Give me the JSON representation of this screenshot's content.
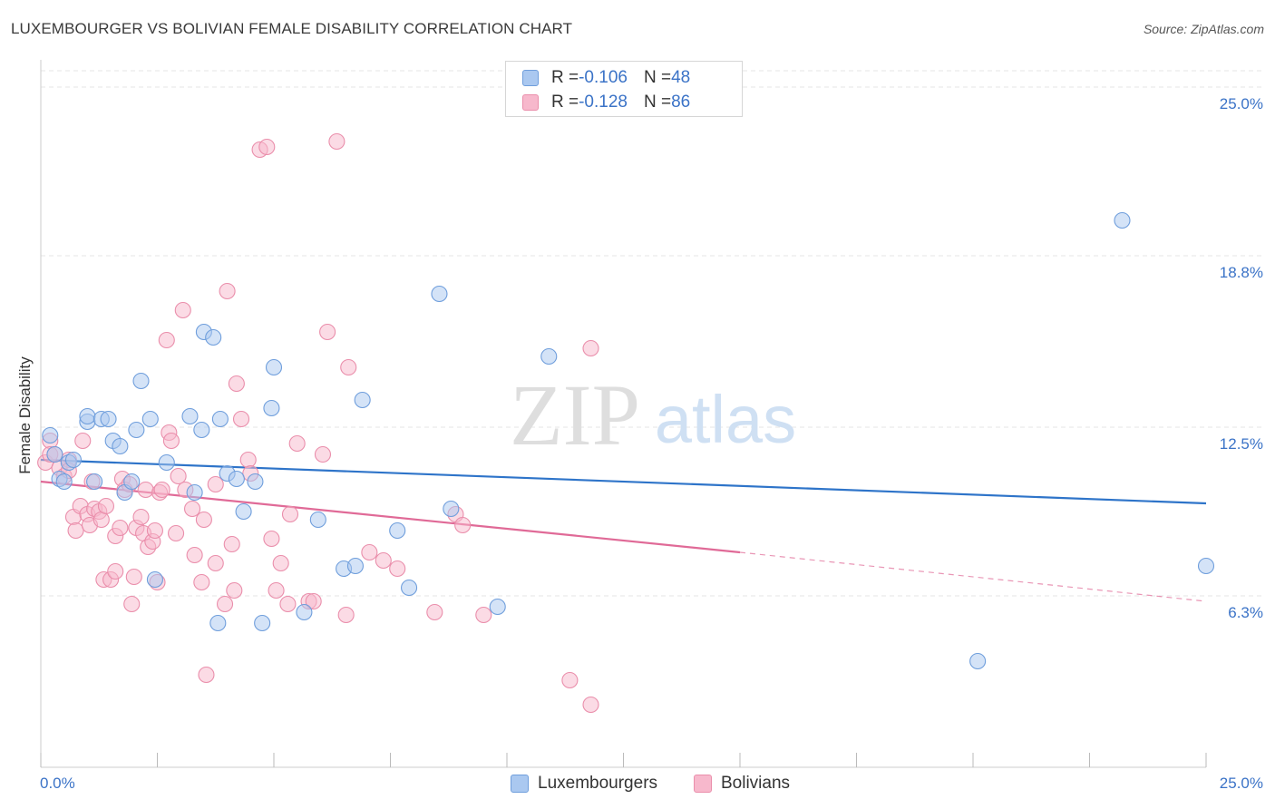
{
  "header": {
    "title": "LUXEMBOURGER VS BOLIVIAN FEMALE DISABILITY CORRELATION CHART",
    "source": "Source: ZipAtlas.com"
  },
  "watermark": {
    "zip": "ZIP",
    "atlas": "atlas"
  },
  "legend": {
    "rows": [
      {
        "r_label": "R = ",
        "r_value": "-0.106",
        "n_label": "N = ",
        "n_value": "48"
      },
      {
        "r_label": "R = ",
        "r_value": "-0.128",
        "n_label": "N = ",
        "n_value": "86"
      }
    ]
  },
  "colors": {
    "lux_fill": "#aac8f0",
    "lux_stroke": "#6f9edc",
    "lux_line": "#2e74c9",
    "bol_fill": "#f7b8cc",
    "bol_stroke": "#ea8eab",
    "bol_line": "#e06a97",
    "grid": "#e6e6e6",
    "tick_text": "#3b73c7"
  },
  "chart_data": {
    "type": "scatter",
    "title": "LUXEMBOURGER VS BOLIVIAN FEMALE DISABILITY CORRELATION CHART",
    "xlabel": "",
    "ylabel": "Female Disability",
    "xlim": [
      0,
      25
    ],
    "ylim": [
      0,
      26
    ],
    "x_tick_labels": [
      "0.0%",
      "25.0%"
    ],
    "y_ticks": [
      6.3,
      12.5,
      18.8,
      25.0
    ],
    "y_tick_labels": [
      "6.3%",
      "12.5%",
      "18.8%",
      "25.0%"
    ],
    "grid": true,
    "series": [
      {
        "name": "Luxembourgers",
        "r": -0.106,
        "n": 48,
        "trend": {
          "x0": 0,
          "y0": 11.3,
          "x1": 25,
          "y1": 9.7
        },
        "points": [
          [
            0.2,
            12.2
          ],
          [
            0.3,
            11.5
          ],
          [
            0.4,
            10.6
          ],
          [
            0.5,
            10.5
          ],
          [
            0.6,
            11.2
          ],
          [
            0.7,
            11.3
          ],
          [
            1.0,
            12.7
          ],
          [
            1.0,
            12.9
          ],
          [
            1.15,
            10.5
          ],
          [
            1.3,
            12.8
          ],
          [
            1.45,
            12.8
          ],
          [
            1.55,
            12.0
          ],
          [
            1.7,
            11.8
          ],
          [
            1.8,
            10.1
          ],
          [
            1.95,
            10.5
          ],
          [
            2.05,
            12.4
          ],
          [
            2.15,
            14.2
          ],
          [
            2.35,
            12.8
          ],
          [
            2.45,
            6.9
          ],
          [
            2.7,
            11.2
          ],
          [
            3.2,
            12.9
          ],
          [
            3.3,
            10.1
          ],
          [
            3.45,
            12.4
          ],
          [
            3.5,
            16.0
          ],
          [
            3.7,
            15.8
          ],
          [
            3.85,
            12.8
          ],
          [
            3.8,
            5.3
          ],
          [
            4.0,
            10.8
          ],
          [
            4.2,
            10.6
          ],
          [
            4.35,
            9.4
          ],
          [
            4.6,
            10.5
          ],
          [
            4.75,
            5.3
          ],
          [
            4.95,
            13.2
          ],
          [
            5.0,
            14.7
          ],
          [
            5.65,
            5.7
          ],
          [
            5.95,
            9.1
          ],
          [
            6.5,
            7.3
          ],
          [
            6.75,
            7.4
          ],
          [
            6.9,
            13.5
          ],
          [
            7.65,
            8.7
          ],
          [
            7.9,
            6.6
          ],
          [
            8.55,
            17.4
          ],
          [
            8.8,
            9.5
          ],
          [
            9.8,
            5.9
          ],
          [
            10.9,
            15.1
          ],
          [
            20.1,
            3.9
          ],
          [
            23.2,
            20.1
          ],
          [
            25.0,
            7.4
          ]
        ]
      },
      {
        "name": "Bolivians",
        "r": -0.128,
        "n": 86,
        "trend": {
          "x0": 0,
          "y0": 10.5,
          "x1": 15,
          "y1": 7.9,
          "dash_x1": 25,
          "dash_y1": 6.1
        },
        "points": [
          [
            0.1,
            11.2
          ],
          [
            0.2,
            12.0
          ],
          [
            0.2,
            11.5
          ],
          [
            0.3,
            11.5
          ],
          [
            0.4,
            11.0
          ],
          [
            0.5,
            10.7
          ],
          [
            0.6,
            11.3
          ],
          [
            0.6,
            10.9
          ],
          [
            0.7,
            9.2
          ],
          [
            0.75,
            8.7
          ],
          [
            0.85,
            9.6
          ],
          [
            0.9,
            12.0
          ],
          [
            1.0,
            9.3
          ],
          [
            1.05,
            8.9
          ],
          [
            1.1,
            10.5
          ],
          [
            1.15,
            9.5
          ],
          [
            1.25,
            9.4
          ],
          [
            1.3,
            9.1
          ],
          [
            1.4,
            9.6
          ],
          [
            1.35,
            6.9
          ],
          [
            1.5,
            6.9
          ],
          [
            1.6,
            7.2
          ],
          [
            1.6,
            8.5
          ],
          [
            1.7,
            8.8
          ],
          [
            1.75,
            10.6
          ],
          [
            1.8,
            10.2
          ],
          [
            1.9,
            10.4
          ],
          [
            1.95,
            6.0
          ],
          [
            2.0,
            7.0
          ],
          [
            2.05,
            8.8
          ],
          [
            2.15,
            9.2
          ],
          [
            2.2,
            8.6
          ],
          [
            2.25,
            10.2
          ],
          [
            2.3,
            8.1
          ],
          [
            2.4,
            8.3
          ],
          [
            2.45,
            8.7
          ],
          [
            2.5,
            6.8
          ],
          [
            2.55,
            10.1
          ],
          [
            2.6,
            10.2
          ],
          [
            2.7,
            15.7
          ],
          [
            2.75,
            12.3
          ],
          [
            2.8,
            12.0
          ],
          [
            2.9,
            8.6
          ],
          [
            2.95,
            10.7
          ],
          [
            3.05,
            16.8
          ],
          [
            3.1,
            10.2
          ],
          [
            3.25,
            9.5
          ],
          [
            3.3,
            7.8
          ],
          [
            3.45,
            6.8
          ],
          [
            3.5,
            9.1
          ],
          [
            3.55,
            3.4
          ],
          [
            3.75,
            7.5
          ],
          [
            3.75,
            10.4
          ],
          [
            3.95,
            6.0
          ],
          [
            4.0,
            17.5
          ],
          [
            4.1,
            8.2
          ],
          [
            4.15,
            6.5
          ],
          [
            4.2,
            14.1
          ],
          [
            4.3,
            12.8
          ],
          [
            4.45,
            11.3
          ],
          [
            4.5,
            10.8
          ],
          [
            4.7,
            22.7
          ],
          [
            4.85,
            22.8
          ],
          [
            4.95,
            8.4
          ],
          [
            5.05,
            6.5
          ],
          [
            5.15,
            7.5
          ],
          [
            5.3,
            6.0
          ],
          [
            5.35,
            9.3
          ],
          [
            5.5,
            11.9
          ],
          [
            5.75,
            6.1
          ],
          [
            5.85,
            6.1
          ],
          [
            6.05,
            11.5
          ],
          [
            6.15,
            16.0
          ],
          [
            6.35,
            23.0
          ],
          [
            6.55,
            5.6
          ],
          [
            6.6,
            14.7
          ],
          [
            7.05,
            7.9
          ],
          [
            7.35,
            7.6
          ],
          [
            7.65,
            7.3
          ],
          [
            8.45,
            5.7
          ],
          [
            8.9,
            9.3
          ],
          [
            9.05,
            8.9
          ],
          [
            9.5,
            5.6
          ],
          [
            11.35,
            3.2
          ],
          [
            11.8,
            2.3
          ],
          [
            11.8,
            15.4
          ]
        ]
      }
    ]
  }
}
